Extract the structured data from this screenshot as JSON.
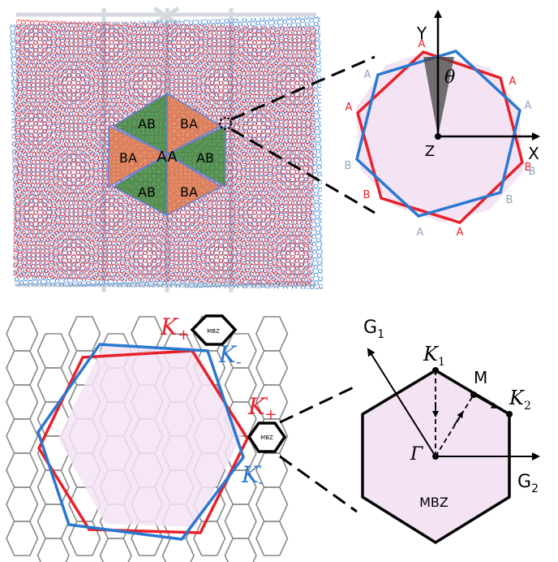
{
  "moire": {
    "aa_label": "AA",
    "region_labels": [
      "AB",
      "BA",
      "BA",
      "AB",
      "AB",
      "BA"
    ]
  },
  "bilayer_cell": {
    "y_axis": "Y",
    "x_axis": "X",
    "z_label": "Z",
    "angle_label": "θ",
    "red_site_labels": [
      "A",
      "A",
      "B",
      "B",
      "A",
      "A"
    ],
    "blue_site_labels": [
      "A",
      "A",
      "B",
      "B",
      "A",
      "B"
    ]
  },
  "bz": {
    "k_plus": "K",
    "k_plus_sub": "+",
    "k_minus": "K",
    "k_minus_sub": "-",
    "k_plus_prime": "K",
    "k_plus_prime_sub": "+",
    "k_plus_prime_sup": "'",
    "k_minus_prime": "K",
    "k_minus_prime_sub": "-",
    "k_minus_prime_sup": "'",
    "mbz_small_top": "MBZ",
    "mbz_small_right": "MBZ"
  },
  "mbz": {
    "g1": "G",
    "g1_sub": "1",
    "g2": "G",
    "g2_sub": "2",
    "k1": "K",
    "k1_sub": "1",
    "k2": "K",
    "k2_sub": "2",
    "m": "M",
    "gamma": "Γ",
    "name": "MBZ"
  },
  "colors": {
    "red_layer": "#e8202a",
    "blue_layer": "#2a78d0",
    "ab_region": "#3a8a3a",
    "ba_region": "#e07a4a",
    "pink_fill": "#f3e3f3",
    "grey_label": "#8fa3c3"
  }
}
